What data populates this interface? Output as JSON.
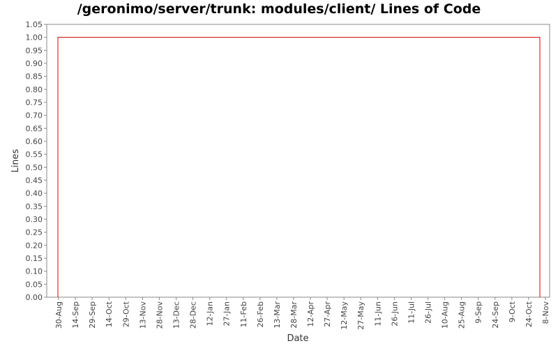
{
  "chart_data": {
    "type": "line",
    "title": "/geronimo/server/trunk: modules/client/ Lines of Code",
    "xlabel": "Date",
    "ylabel": "Lines",
    "ylim": [
      0,
      1.05
    ],
    "yticks": [
      "0.00",
      "0.05",
      "0.10",
      "0.15",
      "0.20",
      "0.25",
      "0.30",
      "0.35",
      "0.40",
      "0.45",
      "0.50",
      "0.55",
      "0.60",
      "0.65",
      "0.70",
      "0.75",
      "0.80",
      "0.85",
      "0.90",
      "0.95",
      "1.00",
      "1.05"
    ],
    "xticks": [
      "30-Aug",
      "14-Sep",
      "29-Sep",
      "14-Oct",
      "29-Oct",
      "13-Nov",
      "28-Nov",
      "13-Dec",
      "28-Dec",
      "12-Jan",
      "27-Jan",
      "11-Feb",
      "26-Feb",
      "13-Mar",
      "28-Mar",
      "12-Apr",
      "27-Apr",
      "12-May",
      "27-May",
      "11-Jun",
      "26-Jun",
      "11-Jul",
      "26-Jul",
      "10-Aug",
      "25-Aug",
      "9-Sep",
      "24-Sep",
      "9-Oct",
      "24-Oct",
      "8-Nov"
    ],
    "series": [
      {
        "color": "#cc0000",
        "points": [
          {
            "x": "30-Aug",
            "y": 0
          },
          {
            "x": "30-Aug",
            "y": 1
          },
          {
            "x": "8-Nov",
            "y": 1
          },
          {
            "x": "8-Nov",
            "y": 0
          }
        ]
      }
    ],
    "grid": false,
    "legend": "none"
  }
}
